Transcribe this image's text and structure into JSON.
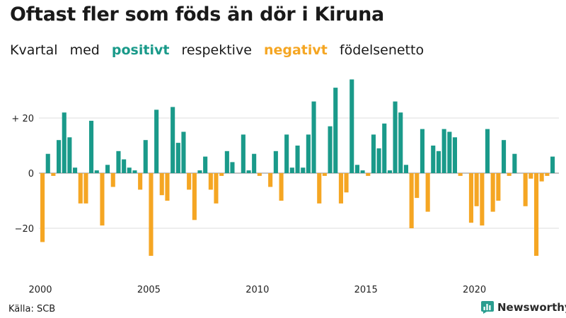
{
  "title": "Oftast fler som föds än dör i Kiruna",
  "subtitle": {
    "prefix1": "Kvartal",
    "prefix2": "med",
    "positive_word": "positivt",
    "middle": "respektive",
    "negative_word": "negativt",
    "suffix": "födelsenetto"
  },
  "source": "Källa: SCB",
  "brand": "Newsworthy",
  "colors": {
    "positive": "#1a9a8a",
    "negative": "#f5a623",
    "brand": "#2a9d8f"
  },
  "chart_data": {
    "type": "bar",
    "x_start": "2000 Q1",
    "values": [
      -25,
      7,
      -1,
      12,
      22,
      13,
      2,
      -11,
      -11,
      19,
      1,
      -19,
      3,
      -5,
      8,
      5,
      2,
      1,
      -6,
      12,
      -30,
      23,
      -8,
      -10,
      24,
      11,
      15,
      -6,
      -17,
      1,
      6,
      -6,
      -11,
      -1,
      8,
      4,
      0,
      14,
      1,
      7,
      -1,
      0,
      -5,
      8,
      -10,
      14,
      2,
      10,
      2,
      14,
      26,
      -11,
      -1,
      17,
      31,
      -11,
      -7,
      34,
      3,
      1,
      -1,
      14,
      9,
      18,
      1,
      26,
      22,
      3,
      -20,
      -9,
      16,
      -14,
      10,
      8,
      16,
      15,
      13,
      -1,
      0,
      -18,
      -12,
      -19,
      16,
      -14,
      -10,
      12,
      -1,
      7,
      0,
      -12,
      -2,
      -30,
      -3,
      -1,
      6
    ],
    "xticks": [
      "2000",
      "2005",
      "2010",
      "2015",
      "2020"
    ],
    "yticks": [
      "+ 20",
      "0",
      "−20"
    ],
    "ytick_values": [
      20,
      0,
      -20
    ],
    "ylim": [
      -34,
      36
    ],
    "grid": true
  }
}
